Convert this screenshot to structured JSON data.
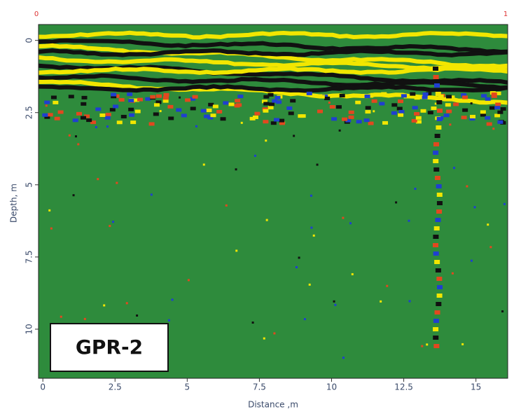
{
  "chart_data": {
    "type": "radargram",
    "label": "GPR-2",
    "xlabel": "Distance ,m",
    "ylabel": "Depth, m",
    "corner_labels": [
      "0",
      "1"
    ],
    "xlim": [
      -0.15,
      16.1
    ],
    "xticks": [
      0,
      2.5,
      5,
      7.5,
      10,
      12.5,
      15
    ],
    "ylim": [
      -0.55,
      11.7
    ],
    "yticks": [
      0,
      2.5,
      5,
      7.5,
      10
    ],
    "background_color": "#2e8b3c"
  }
}
